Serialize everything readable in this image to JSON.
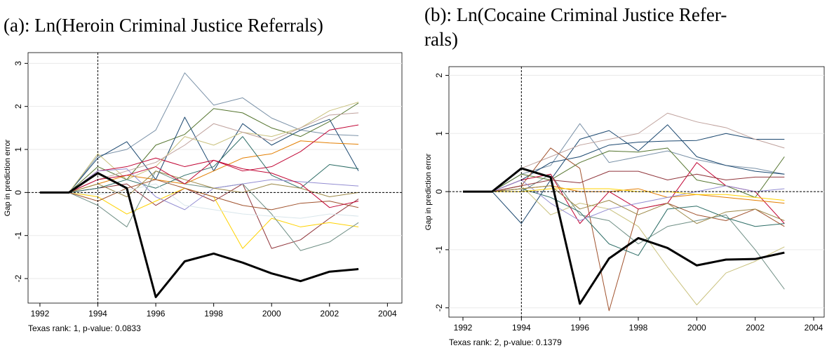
{
  "chart_data": [
    {
      "type": "line",
      "title": "(a): Ln(Heroin Criminal Justice Referrals)",
      "ylabel": "Gap in prediction error",
      "note": "Texas rank: 1, p-value: 0.0833",
      "x": [
        1992,
        1993,
        1994,
        1995,
        1996,
        1997,
        1998,
        1999,
        2000,
        2001,
        2002,
        2003
      ],
      "xlim": [
        1991.59,
        2004.5
      ],
      "xticks": [
        1992,
        1994,
        1996,
        1998,
        2000,
        2002,
        2004
      ],
      "ylim": [
        -2.57,
        3.25
      ],
      "yticks": [
        -2,
        -1,
        0,
        1,
        2,
        3
      ],
      "grid": true,
      "vline": 1994,
      "hline": 0,
      "series": [
        {
          "color": "#7b92a8",
          "values": [
            0,
            0,
            0.85,
            1.0,
            1.45,
            2.78,
            2.03,
            2.2,
            1.73,
            1.45,
            1.35,
            1.32
          ]
        },
        {
          "color": "#55752f",
          "values": [
            0,
            0,
            0.6,
            0.3,
            1.1,
            1.35,
            1.95,
            1.85,
            1.5,
            1.3,
            1.65,
            2.08
          ]
        },
        {
          "color": "#1a476f",
          "values": [
            0,
            0,
            0.8,
            1.18,
            0.3,
            1.75,
            0.5,
            1.6,
            1.1,
            1.45,
            1.7,
            0.5
          ]
        },
        {
          "color": "#cac27e",
          "values": [
            0,
            0,
            0.9,
            0.3,
            0.6,
            1.3,
            1.1,
            1.4,
            1.3,
            1.5,
            1.9,
            2.1
          ]
        },
        {
          "color": "#e37e00",
          "values": [
            0,
            0,
            0.2,
            0.4,
            0.3,
            0.2,
            0.5,
            0.8,
            0.9,
            1.2,
            1.15,
            1.12
          ]
        },
        {
          "color": "#c10534",
          "values": [
            0,
            0,
            0.5,
            0.6,
            0.8,
            0.6,
            0.75,
            0.5,
            0.6,
            0.95,
            1.45,
            1.57
          ]
        },
        {
          "color": "#bfa19c",
          "values": [
            0,
            0,
            0.3,
            0.5,
            0.7,
            1.1,
            1.6,
            1.4,
            1.2,
            1.5,
            1.8,
            1.85
          ]
        },
        {
          "color": "#90353b",
          "values": [
            0,
            0,
            0.1,
            0.2,
            -0.3,
            0.1,
            -0.2,
            0.2,
            -1.3,
            -1.1,
            -0.6,
            -0.15
          ]
        },
        {
          "color": "#ffd200",
          "values": [
            0,
            0,
            -0.1,
            -0.5,
            -0.2,
            0.1,
            -0.1,
            -1.3,
            -0.6,
            -0.8,
            -0.7,
            -0.8
          ]
        },
        {
          "color": "#6e8e84",
          "values": [
            0,
            0,
            -0.3,
            -0.8,
            0.5,
            0.2,
            0.1,
            0.2,
            -0.5,
            -1.35,
            -1.15,
            -0.7
          ]
        },
        {
          "color": "#2d6d66",
          "values": [
            0,
            0,
            0.1,
            0.3,
            0.1,
            0.4,
            0.6,
            1.3,
            0.4,
            0.1,
            0.65,
            0.55
          ]
        },
        {
          "color": "#938dd2",
          "values": [
            0,
            0,
            0.5,
            0.55,
            -0.1,
            -0.4,
            0.1,
            0.2,
            0.3,
            0.25,
            0.2,
            0.15
          ]
        },
        {
          "color": "#a0522d",
          "values": [
            0,
            0,
            -0.2,
            0.1,
            0.3,
            0.1,
            -0.1,
            -0.3,
            -0.4,
            -0.25,
            -0.2,
            -0.35
          ]
        },
        {
          "color": "#9c8847",
          "values": [
            0,
            0,
            0.2,
            -0.1,
            0.5,
            0.3,
            0.1,
            0.0,
            0.2,
            0.1,
            -0.1,
            0.0
          ]
        },
        {
          "color": "#d9e6eb",
          "values": [
            0,
            0,
            -0.05,
            0.05,
            0.2,
            -0.3,
            -0.4,
            -0.5,
            -0.55,
            -0.6,
            -0.5,
            -0.55
          ]
        },
        {
          "color": "#c10534",
          "values": [
            0,
            0,
            0.3,
            0.4,
            0.6,
            0.2,
            0.75,
            0.55,
            0.45,
            0.2,
            -0.35,
            -0.2
          ]
        },
        {
          "color": "#000000",
          "linewidth": 3,
          "values": [
            0,
            0,
            0.45,
            0.1,
            -2.43,
            -1.6,
            -1.42,
            -1.63,
            -1.88,
            -2.06,
            -1.84,
            -1.78
          ]
        }
      ]
    },
    {
      "type": "line",
      "title": [
        "(b): Ln(Cocaine Criminal Justice Refer-",
        "rals)"
      ],
      "ylabel": "Gap in prediction error",
      "note": "Texas rank: 2, p-value: 0.1379",
      "x": [
        1992,
        1993,
        1994,
        1995,
        1996,
        1997,
        1998,
        1999,
        2000,
        2001,
        2002,
        2003
      ],
      "xlim": [
        1991.52,
        2004.36
      ],
      "xticks": [
        1992,
        1994,
        1996,
        1998,
        2000,
        2002,
        2004
      ],
      "ylim": [
        -2.16,
        2.15
      ],
      "yticks": [
        -2,
        -1,
        0,
        1,
        2
      ],
      "grid": true,
      "vline": 1994,
      "hline": 0,
      "series": [
        {
          "color": "#7b92a8",
          "values": [
            0,
            0,
            0.3,
            0.45,
            1.17,
            0.5,
            0.6,
            0.7,
            0.55,
            0.45,
            0.4,
            0.3
          ]
        },
        {
          "color": "#1a476f",
          "values": [
            0,
            0,
            -0.55,
            0.2,
            0.9,
            1.05,
            0.7,
            1.15,
            0.6,
            0.45,
            0.35,
            0.3
          ]
        },
        {
          "color": "#1a476f",
          "values": [
            0,
            0,
            0.2,
            0.5,
            0.6,
            0.8,
            0.85,
            0.87,
            0.88,
            1.0,
            0.9,
            0.9
          ]
        },
        {
          "color": "#bfa19c",
          "values": [
            0,
            0,
            0.4,
            0.6,
            0.8,
            0.9,
            1.0,
            1.35,
            1.2,
            1.1,
            0.9,
            0.75
          ]
        },
        {
          "color": "#cac27e",
          "values": [
            0,
            0,
            0.1,
            -0.4,
            -0.2,
            -0.3,
            -0.6,
            -1.3,
            -1.95,
            -1.4,
            -1.2,
            -0.95
          ]
        },
        {
          "color": "#a0522d",
          "values": [
            0,
            0,
            0.1,
            0.75,
            0.4,
            -2.05,
            -0.3,
            -0.2,
            -0.4,
            -0.5,
            -0.3,
            -0.6
          ]
        },
        {
          "color": "#6e8e84",
          "values": [
            0,
            0,
            0.0,
            0.3,
            -0.4,
            -0.5,
            -0.9,
            -0.6,
            -0.5,
            -0.4,
            -1.0,
            -1.68
          ]
        },
        {
          "color": "#55752f",
          "values": [
            0,
            0,
            0.3,
            0.2,
            0.5,
            0.7,
            0.68,
            0.75,
            0.2,
            0.1,
            -0.1,
            0.6
          ]
        },
        {
          "color": "#c10534",
          "values": [
            0,
            0,
            0.2,
            0.3,
            -0.55,
            0.0,
            -0.3,
            -0.2,
            0.5,
            0.1,
            0.0,
            -0.55
          ]
        },
        {
          "color": "#90353b",
          "values": [
            0,
            0,
            0.1,
            0.2,
            0.15,
            0.35,
            0.35,
            0.2,
            0.3,
            0.2,
            0.25,
            0.25
          ]
        },
        {
          "color": "#e37e00",
          "values": [
            0,
            0,
            0.05,
            0.1,
            0.0,
            0.0,
            0.05,
            -0.1,
            -0.05,
            -0.1,
            -0.15,
            -0.2
          ]
        },
        {
          "color": "#2d6d66",
          "values": [
            0,
            0,
            0.05,
            -0.1,
            -0.35,
            -0.9,
            -1.1,
            -0.3,
            -0.25,
            -0.45,
            -0.6,
            -0.55
          ]
        },
        {
          "color": "#938dd2",
          "values": [
            0,
            0,
            0.2,
            -0.2,
            -0.5,
            -0.3,
            -0.2,
            -0.1,
            0.0,
            0.1,
            0.0,
            0.05
          ]
        },
        {
          "color": "#ffd200",
          "values": [
            0,
            0,
            0.0,
            0.05,
            0.05,
            0.05,
            0.0,
            0.0,
            -0.05,
            -0.05,
            -0.1,
            -0.15
          ]
        },
        {
          "color": "#9c8847",
          "values": [
            0,
            0,
            0.05,
            0.1,
            -0.3,
            -0.15,
            -0.4,
            -0.2,
            -0.55,
            -0.35,
            -0.3,
            -0.5
          ]
        },
        {
          "color": "#000000",
          "linewidth": 3,
          "values": [
            0,
            0,
            0.4,
            0.25,
            -1.93,
            -1.15,
            -0.8,
            -0.97,
            -1.27,
            -1.17,
            -1.16,
            -1.05
          ]
        }
      ]
    }
  ]
}
